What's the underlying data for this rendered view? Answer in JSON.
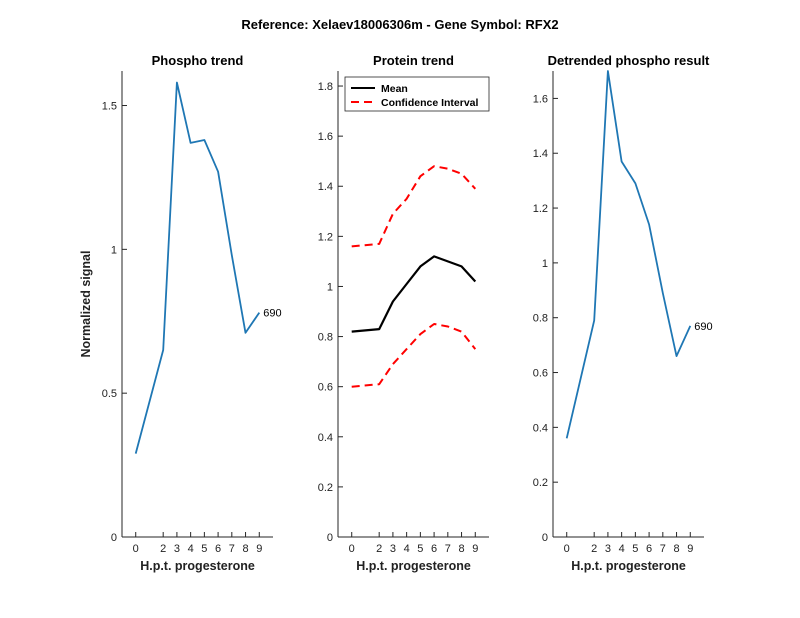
{
  "figure": {
    "suptitle": "Reference:  Xelaev18006306m - Gene Symbol:  RFX2"
  },
  "colors": {
    "phospho": "#1f77b4",
    "mean": "#000000",
    "ci": "#ff0000",
    "axis": "#262626"
  },
  "chart_data": [
    {
      "type": "line",
      "title": "Phospho trend",
      "xlabel": "H.p.t. progesterone",
      "ylabel": "Normalized signal",
      "xlim": [
        -1,
        10
      ],
      "ylim": [
        0,
        1.62
      ],
      "xticks": [
        0,
        2,
        3,
        4,
        5,
        6,
        7,
        8,
        9
      ],
      "xtick_labels": [
        "0",
        "2",
        "3",
        "4",
        "5",
        "6",
        "7",
        "8",
        "9"
      ],
      "yticks": [
        0,
        0.5,
        1,
        1.5
      ],
      "ytick_labels": [
        "0",
        "0.5",
        "1",
        "1.5"
      ],
      "series": [
        {
          "x": [
            0,
            2,
            3,
            4,
            5,
            6,
            7,
            8,
            9
          ],
          "y": [
            0.29,
            0.65,
            1.58,
            1.37,
            1.38,
            1.27,
            0.98,
            0.71,
            0.78
          ],
          "color": "#1f77b4",
          "style": "solid"
        }
      ],
      "annotations": [
        {
          "text": "690",
          "x": 9,
          "y": 0.78
        }
      ]
    },
    {
      "type": "line",
      "title": "Protein trend",
      "xlabel": "H.p.t. progesterone",
      "ylabel": "",
      "xlim": [
        -1,
        10
      ],
      "ylim": [
        0,
        1.86
      ],
      "xticks": [
        0,
        2,
        3,
        4,
        5,
        6,
        7,
        8,
        9
      ],
      "xtick_labels": [
        "0",
        "2",
        "3",
        "4",
        "5",
        "6",
        "7",
        "8",
        "9"
      ],
      "yticks": [
        0,
        0.2,
        0.4,
        0.6,
        0.8,
        1,
        1.2,
        1.4,
        1.6,
        1.8
      ],
      "ytick_labels": [
        "0",
        "0.2",
        "0.4",
        "0.6",
        "0.8",
        "1",
        "1.2",
        "1.4",
        "1.6",
        "1.8"
      ],
      "legend": {
        "position": "top-left",
        "entries": [
          "Mean",
          "Confidence Interval"
        ]
      },
      "series": [
        {
          "name": "Mean",
          "x": [
            0,
            2,
            3,
            4,
            5,
            6,
            7,
            8,
            9
          ],
          "y": [
            0.82,
            0.83,
            0.94,
            1.01,
            1.08,
            1.12,
            1.1,
            1.08,
            1.02
          ],
          "color": "#000000",
          "style": "solid"
        },
        {
          "name": "Confidence Interval",
          "x": [
            0,
            2,
            3,
            4,
            5,
            6,
            7,
            8,
            9
          ],
          "y": [
            1.16,
            1.17,
            1.29,
            1.35,
            1.44,
            1.48,
            1.47,
            1.45,
            1.39
          ],
          "color": "#ff0000",
          "style": "dashed"
        },
        {
          "name": "Confidence Interval",
          "x": [
            0,
            2,
            3,
            4,
            5,
            6,
            7,
            8,
            9
          ],
          "y": [
            0.6,
            0.61,
            0.69,
            0.75,
            0.81,
            0.85,
            0.84,
            0.82,
            0.75
          ],
          "color": "#ff0000",
          "style": "dashed"
        }
      ]
    },
    {
      "type": "line",
      "title": "Detrended phospho result",
      "xlabel": "H.p.t. progesterone",
      "ylabel": "",
      "xlim": [
        -1,
        10
      ],
      "ylim": [
        0,
        1.7
      ],
      "xticks": [
        0,
        2,
        3,
        4,
        5,
        6,
        7,
        8,
        9
      ],
      "xtick_labels": [
        "0",
        "2",
        "3",
        "4",
        "5",
        "6",
        "7",
        "8",
        "9"
      ],
      "yticks": [
        0,
        0.2,
        0.4,
        0.6,
        0.8,
        1,
        1.2,
        1.4,
        1.6
      ],
      "ytick_labels": [
        "0",
        "0.2",
        "0.4",
        "0.6",
        "0.8",
        "1",
        "1.2",
        "1.4",
        "1.6"
      ],
      "series": [
        {
          "x": [
            0,
            2,
            3,
            4,
            5,
            6,
            7,
            8,
            9
          ],
          "y": [
            0.36,
            0.79,
            1.7,
            1.37,
            1.29,
            1.14,
            0.89,
            0.66,
            0.77
          ],
          "color": "#1f77b4",
          "style": "solid"
        }
      ],
      "annotations": [
        {
          "text": "690",
          "x": 9,
          "y": 0.77
        }
      ]
    }
  ]
}
